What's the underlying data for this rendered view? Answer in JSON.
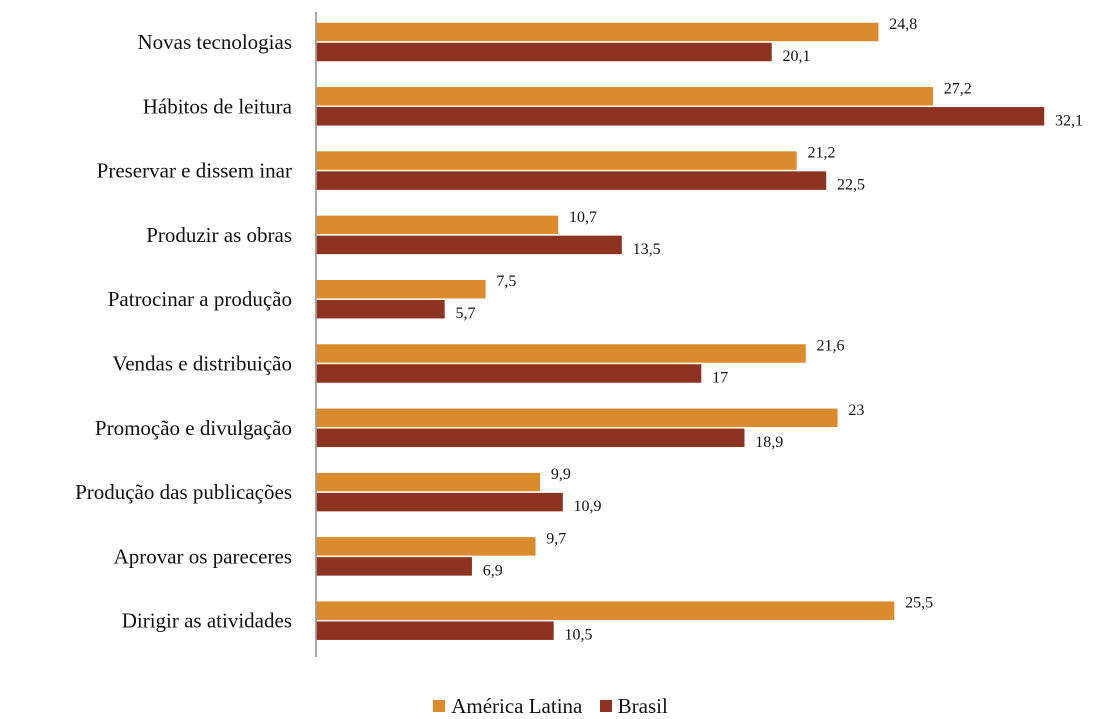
{
  "chart_data": {
    "type": "bar",
    "orientation": "horizontal",
    "categories": [
      "Novas tecnologias",
      "Hábitos de leitura",
      "Preservar e dissem inar",
      "Produzir as obras",
      "Patrocinar a produção",
      "Vendas e distribuição",
      "Promoção e divulgação",
      "Produção das publicações",
      "Aprovar os pareceres",
      "Dirigir as atividades"
    ],
    "series": [
      {
        "name": "América Latina",
        "color": "#D98B2E",
        "values": [
          24.8,
          27.2,
          21.2,
          10.7,
          7.5,
          21.6,
          23,
          9.9,
          9.7,
          25.5
        ],
        "labels": [
          "24,8",
          "27,2",
          "21,2",
          "10,7",
          "7,5",
          "21,6",
          "23",
          "9,9",
          "9,7",
          "25,5"
        ]
      },
      {
        "name": "Brasil",
        "color": "#8C3421",
        "values": [
          20.1,
          32.1,
          22.5,
          13.5,
          5.7,
          17,
          18.9,
          10.9,
          6.9,
          10.5
        ],
        "labels": [
          "20,1",
          "32,1",
          "22,5",
          "13,5",
          "5,7",
          "17",
          "18,9",
          "10,9",
          "6,9",
          "10,5"
        ]
      }
    ],
    "xlim": [
      0,
      32.1
    ],
    "grid": false,
    "legend_position": "bottom-center"
  }
}
